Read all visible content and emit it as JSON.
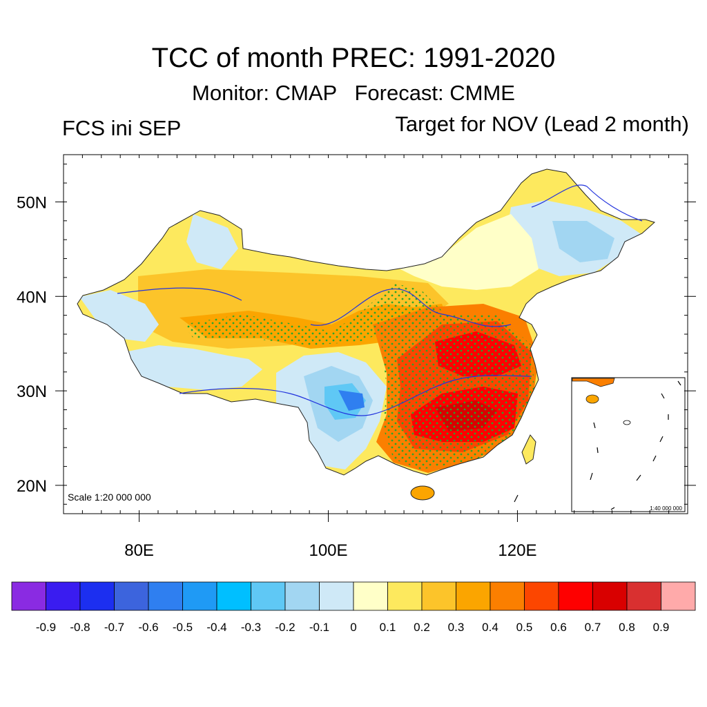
{
  "title": "TCC of month PREC: 1991-2020",
  "subtitle": "Monitor: CMAP   Forecast: CMME",
  "left_label": "FCS ini SEP",
  "right_label": "Target for NOV (Lead 2 month)",
  "scale_main": "Scale 1:20 000 000",
  "scale_inset": "1:40 000 000",
  "map": {
    "lon_range": [
      72,
      138
    ],
    "lat_range": [
      17,
      55
    ],
    "lon_ticks": [
      {
        "value": 80,
        "label": "80E"
      },
      {
        "value": 100,
        "label": "100E"
      },
      {
        "value": 120,
        "label": "120E"
      }
    ],
    "lat_ticks": [
      {
        "value": 20,
        "label": "20N"
      },
      {
        "value": 30,
        "label": "30N"
      },
      {
        "value": 40,
        "label": "40N"
      },
      {
        "value": 50,
        "label": "50N"
      }
    ],
    "stippling": "significant regions marked with green dots"
  },
  "colorbar": {
    "colors": [
      "#8a2be2",
      "#3a1cf0",
      "#1c2ff0",
      "#3c64dd",
      "#2f7ff0",
      "#1f9af5",
      "#00bfff",
      "#5fc8f5",
      "#a2d6f2",
      "#cfe9f7",
      "#ffffc8",
      "#fde95e",
      "#fcc42a",
      "#fba500",
      "#fb7f00",
      "#fc4600",
      "#fe0000",
      "#d90000",
      "#d93030",
      "#ffaaaa"
    ],
    "labels": [
      "-0.9",
      "-0.8",
      "-0.7",
      "-0.6",
      "-0.5",
      "-0.4",
      "-0.3",
      "-0.2",
      "-0.1",
      "0",
      "0.1",
      "0.2",
      "0.3",
      "0.4",
      "0.5",
      "0.6",
      "0.7",
      "0.8",
      "0.9"
    ]
  }
}
